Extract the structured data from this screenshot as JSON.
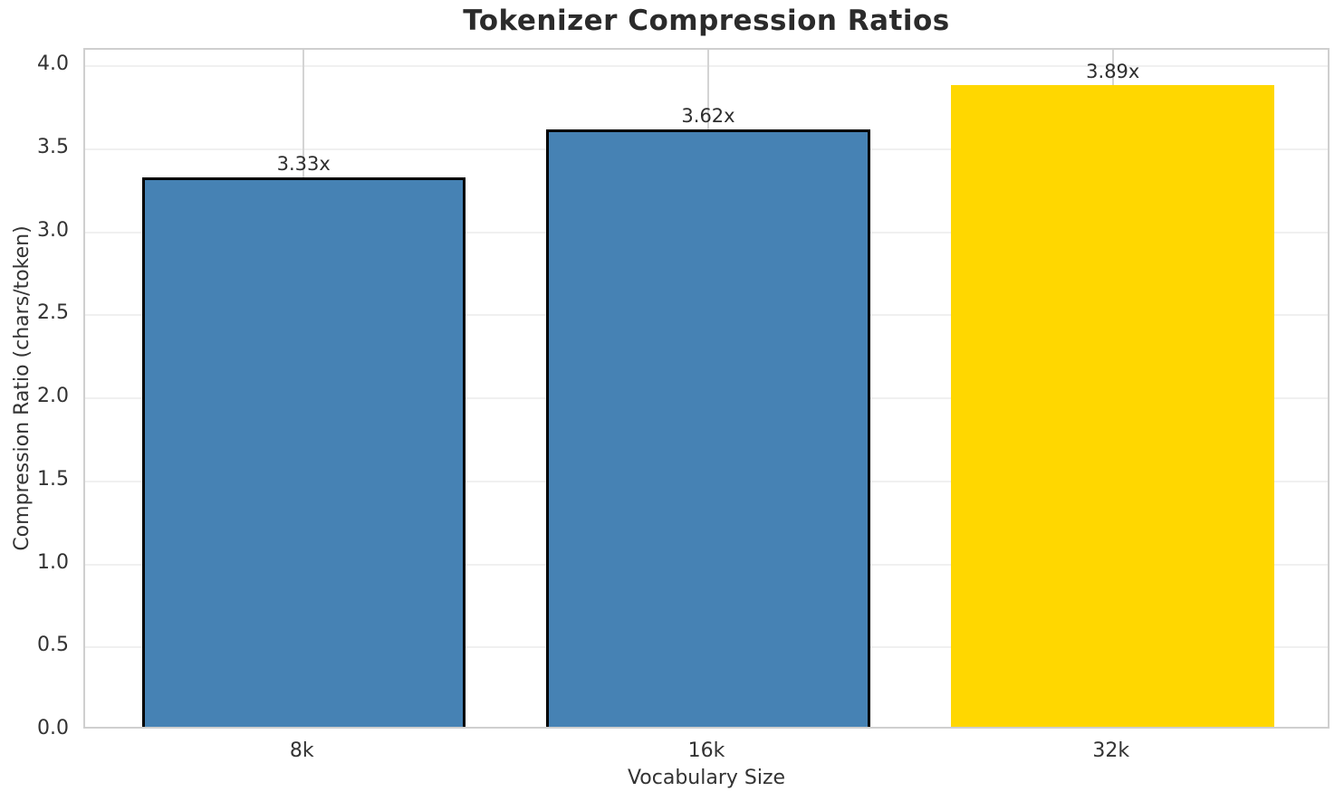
{
  "chart_data": {
    "type": "bar",
    "title": "Tokenizer Compression Ratios",
    "xlabel": "Vocabulary Size",
    "ylabel": "Compression Ratio (chars/token)",
    "categories": [
      "8k",
      "16k",
      "32k"
    ],
    "values": [
      3.33,
      3.62,
      3.89
    ],
    "bar_labels": [
      "3.33x",
      "3.62x",
      "3.89x"
    ],
    "bar_colors": [
      "#4682b4",
      "#4682b4",
      "#ffd700"
    ],
    "bar_edge_colors": [
      "#000000",
      "#000000",
      null
    ],
    "yticks": [
      "0.0",
      "0.5",
      "1.0",
      "1.5",
      "2.0",
      "2.5",
      "3.0",
      "3.5",
      "4.0"
    ],
    "ylim": [
      0,
      4.1
    ],
    "xlim": [
      -0.54,
      2.54
    ],
    "bar_width": 0.8,
    "grid": true,
    "legend": false
  }
}
